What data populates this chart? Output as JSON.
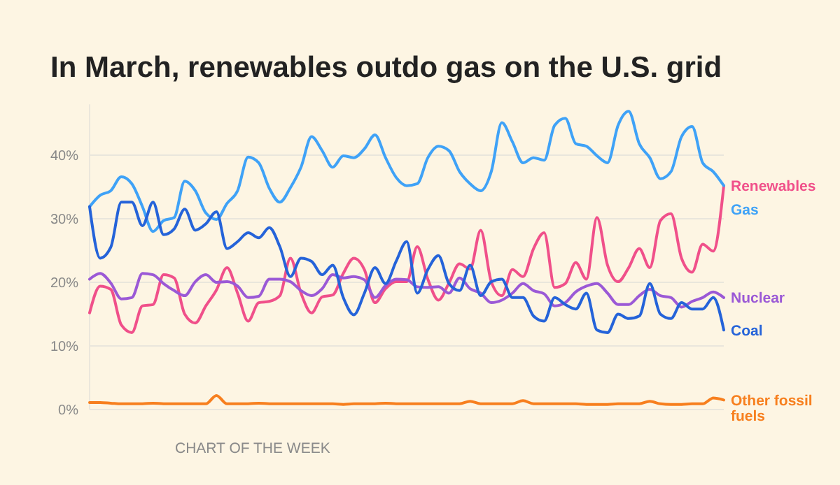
{
  "chart_data": {
    "type": "line",
    "title": "In March, renewables outdo gas on the U.S. grid",
    "annotations": [
      "CHART OF THE WEEK"
    ],
    "categories": [
      null,
      null,
      null,
      null,
      null,
      null,
      null,
      null,
      null,
      null,
      null,
      null,
      null,
      null,
      null,
      null,
      null,
      null,
      null,
      null,
      null,
      null,
      null,
      null,
      null,
      null,
      null,
      null,
      null,
      null,
      null,
      null,
      null,
      null,
      null,
      null,
      null,
      null,
      null,
      null,
      null,
      null,
      null,
      null,
      null,
      null,
      null,
      null,
      null,
      null,
      null,
      null,
      null,
      null,
      null,
      null,
      null,
      null,
      null,
      null,
      null
    ],
    "ylim": [
      0,
      48
    ],
    "yticks": [
      {
        "value": 0,
        "label": "0%"
      },
      {
        "value": 10,
        "label": "10%"
      },
      {
        "value": 20,
        "label": "20%"
      },
      {
        "value": 30,
        "label": "30%"
      },
      {
        "value": 40,
        "label": "40%"
      }
    ],
    "grid": "y",
    "marker": "none",
    "line_style": "solid",
    "series": [
      {
        "name": "Renewables",
        "color": "#f0508a",
        "values": [
          15.2,
          19.4,
          18.9,
          13.3,
          12.1,
          16.3,
          16.5,
          21.2,
          20.7,
          15.0,
          13.6,
          16.3,
          18.8,
          22.3,
          18.3,
          13.9,
          16.8,
          17.0,
          17.9,
          23.8,
          18.3,
          15.2,
          17.7,
          18.0,
          21.4,
          23.8,
          22.0,
          16.8,
          19.0,
          20.1,
          20.1,
          25.6,
          20.5,
          17.2,
          19.9,
          22.9,
          22.1,
          28.2,
          20.1,
          17.9,
          22.0,
          20.9,
          25.3,
          27.8,
          19.2,
          19.8,
          23.1,
          20.5,
          30.2,
          22.7,
          20.1,
          22.3,
          25.3,
          22.3,
          29.7,
          30.8,
          23.8,
          21.6,
          26.0,
          24.9,
          35.2
        ]
      },
      {
        "name": "Gas",
        "color": "#3fa2f7",
        "values": [
          31.9,
          33.7,
          34.4,
          36.6,
          35.5,
          31.9,
          28.0,
          29.7,
          30.2,
          35.9,
          34.4,
          30.9,
          29.9,
          32.4,
          34.4,
          39.7,
          38.8,
          34.8,
          32.6,
          34.9,
          38.1,
          42.9,
          40.7,
          38.1,
          39.9,
          39.6,
          41.0,
          43.2,
          39.6,
          36.5,
          35.2,
          35.5,
          39.6,
          41.4,
          40.7,
          37.4,
          35.5,
          34.4,
          37.4,
          45.1,
          42.1,
          38.8,
          39.6,
          39.2,
          44.7,
          45.8,
          41.8,
          41.4,
          39.9,
          38.8,
          44.7,
          46.9,
          41.8,
          39.6,
          36.3,
          37.4,
          42.9,
          44.5,
          38.8,
          37.4,
          35.2
        ]
      },
      {
        "name": "Nuclear",
        "color": "#9b59d6",
        "values": [
          20.5,
          21.4,
          19.9,
          17.4,
          17.6,
          21.4,
          21.2,
          19.8,
          18.7,
          17.9,
          20.1,
          21.2,
          20.0,
          20.1,
          19.4,
          17.6,
          17.8,
          20.5,
          20.5,
          20.1,
          18.7,
          17.9,
          19.0,
          21.2,
          20.7,
          20.9,
          20.4,
          17.6,
          19.5,
          20.5,
          20.4,
          19.3,
          19.2,
          19.3,
          18.3,
          20.7,
          19.0,
          18.3,
          16.8,
          17.2,
          18.3,
          19.8,
          18.7,
          18.2,
          16.3,
          16.8,
          18.5,
          19.4,
          19.8,
          18.3,
          16.5,
          16.5,
          17.9,
          18.9,
          17.9,
          17.6,
          16.1,
          17.0,
          17.6,
          18.5,
          17.6
        ]
      },
      {
        "name": "Coal",
        "color": "#2563d9",
        "values": [
          31.9,
          23.8,
          25.5,
          32.6,
          32.6,
          28.9,
          32.6,
          27.5,
          28.4,
          31.5,
          28.2,
          29.2,
          31.1,
          25.3,
          26.4,
          27.8,
          27.0,
          28.6,
          25.6,
          20.9,
          23.8,
          23.3,
          21.2,
          22.7,
          17.6,
          14.9,
          18.3,
          22.3,
          19.8,
          23.3,
          26.4,
          18.3,
          22.0,
          24.2,
          19.8,
          18.7,
          22.7,
          17.9,
          20.1,
          20.5,
          17.6,
          17.6,
          14.7,
          13.9,
          17.6,
          16.5,
          15.8,
          18.3,
          12.5,
          12.1,
          15.0,
          14.3,
          14.7,
          19.8,
          15.0,
          14.3,
          16.8,
          15.8,
          15.8,
          17.6,
          12.5
        ]
      },
      {
        "name": "Other fossil fuels",
        "color": "#f77f1e",
        "values": [
          1.1,
          1.1,
          1.0,
          0.9,
          0.9,
          0.9,
          1.0,
          0.9,
          0.9,
          0.9,
          0.9,
          0.9,
          2.2,
          0.9,
          0.9,
          0.9,
          1.0,
          0.9,
          0.9,
          0.9,
          0.9,
          0.9,
          0.9,
          0.9,
          0.8,
          0.9,
          0.9,
          0.9,
          1.0,
          0.9,
          0.9,
          0.9,
          0.9,
          0.9,
          0.9,
          0.9,
          1.3,
          0.9,
          0.9,
          0.9,
          0.9,
          1.4,
          0.9,
          0.9,
          0.9,
          0.9,
          0.9,
          0.8,
          0.8,
          0.8,
          0.9,
          0.9,
          0.9,
          1.3,
          0.9,
          0.8,
          0.8,
          0.9,
          0.9,
          1.8,
          1.5
        ]
      }
    ]
  }
}
